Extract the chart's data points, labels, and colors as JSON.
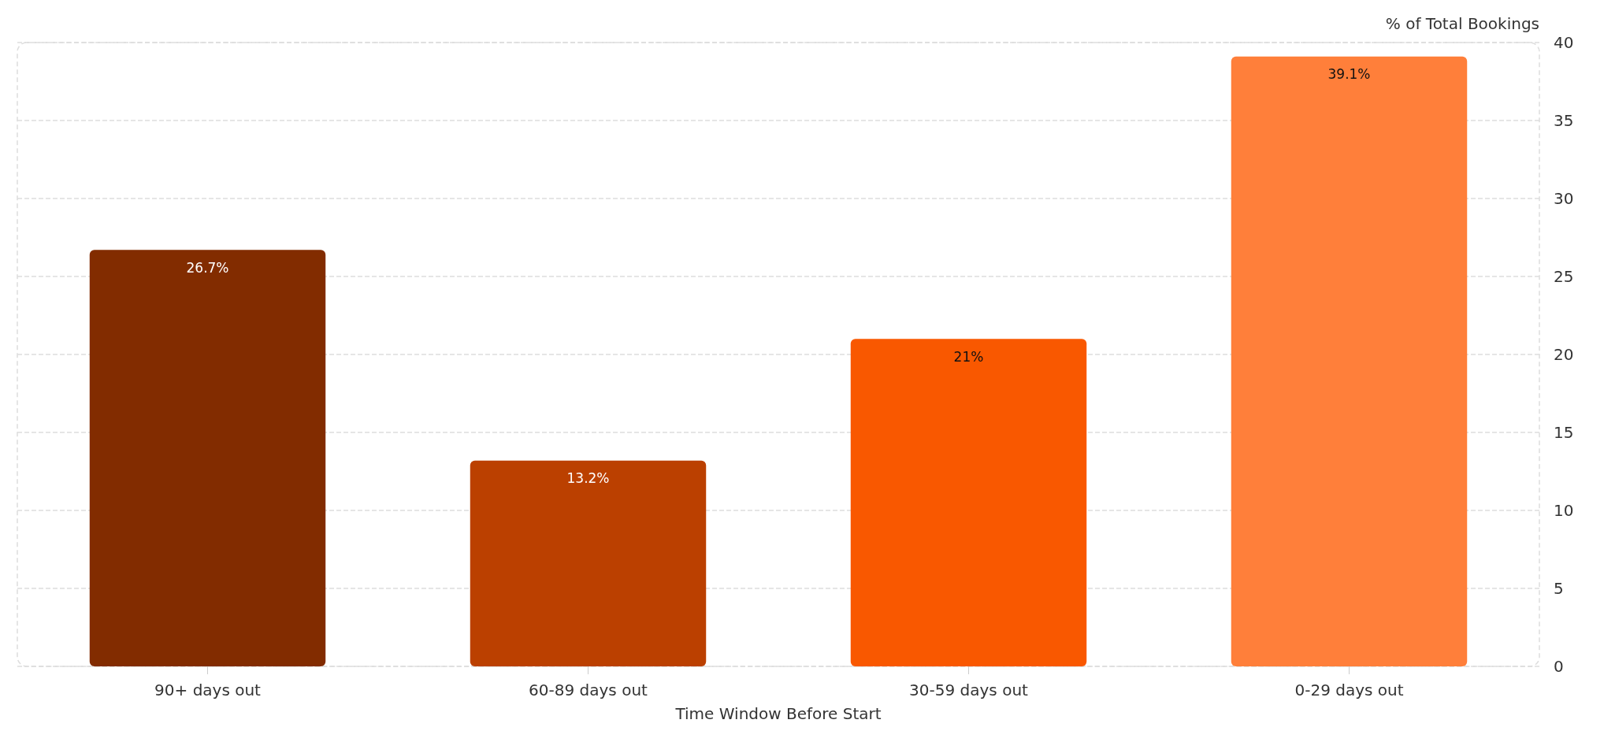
{
  "chart_data": {
    "type": "bar",
    "xlabel": "Time Window Before Start",
    "ylabel": "% of Total Bookings",
    "categories": [
      "90+ days out",
      "60-89 days out",
      "30-59 days out",
      "0-29 days out"
    ],
    "values": [
      26.7,
      13.2,
      21,
      39.1
    ],
    "colors": [
      "#822c00",
      "#bb4000",
      "#f95800",
      "#ff7f3a"
    ],
    "value_labels": [
      "26.7%",
      "13.2%",
      "21%",
      "39.1%"
    ],
    "ylim": [
      0,
      40
    ],
    "yticks": [
      0,
      5,
      10,
      15,
      20,
      25,
      30,
      35,
      40
    ],
    "grid": "y"
  }
}
